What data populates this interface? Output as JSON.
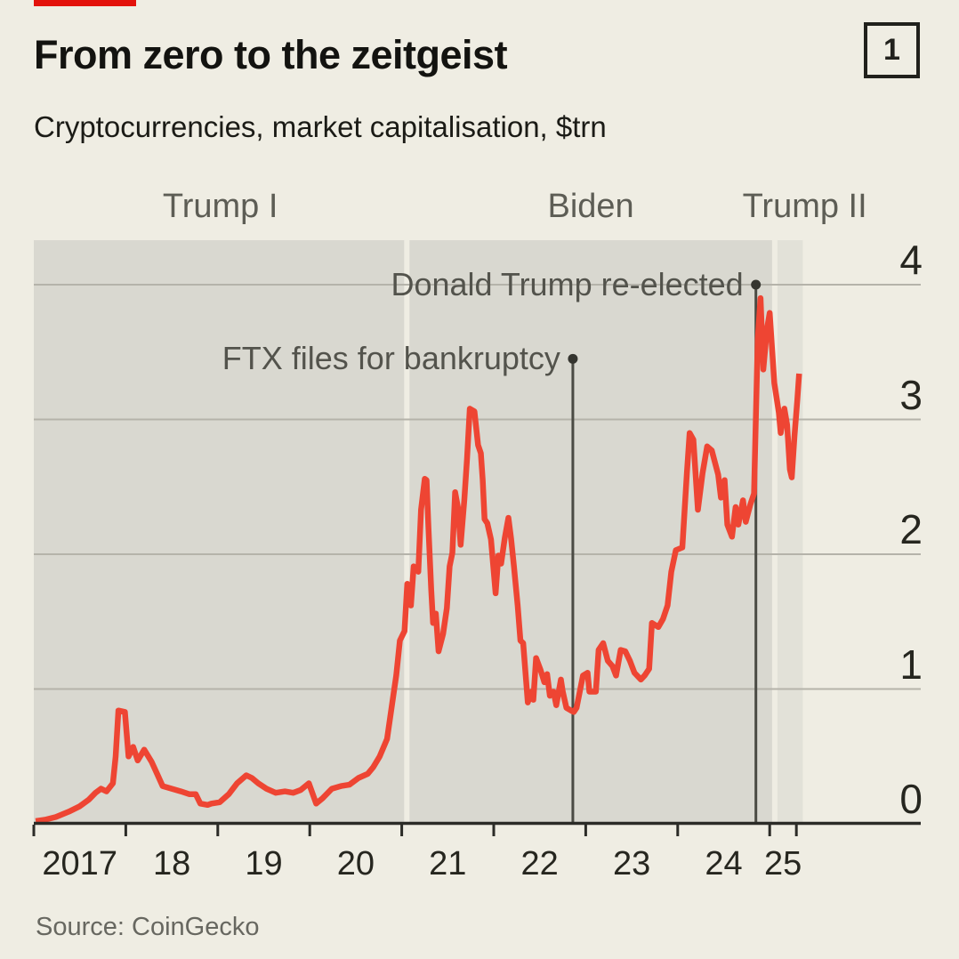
{
  "header": {
    "title": "From zero to the zeitgeist",
    "index_label": "1",
    "subtitle": "Cryptocurrencies, market capitalisation, $trn"
  },
  "source": "Source: CoinGecko",
  "colors": {
    "background": "#efede3",
    "band": "#d9d8d0",
    "band_light": "#e2e1d8",
    "gridline": "#b5b3aa",
    "axis": "#2b2b27",
    "line": "#ee4533",
    "annotation_line": "#4b4b44",
    "annotation_dot": "#35352f",
    "red_tab": "#e3120b"
  },
  "chart_data": {
    "type": "line",
    "title": "Cryptocurrencies, market capitalisation, $trn",
    "xlabel": "",
    "ylabel": "$trn",
    "x_range": [
      2017.0,
      2025.36
    ],
    "y_range": [
      0,
      4.33
    ],
    "grid": "horizontal",
    "legend": "none",
    "y_ticks": [
      4,
      3,
      2,
      1,
      0
    ],
    "x_ticks": [
      2017,
      2018,
      2019,
      2020,
      2021,
      2022,
      2023,
      2024,
      2025,
      2025.29
    ],
    "x_labels": [
      {
        "text": "2017",
        "center_year": 2017.5
      },
      {
        "text": "18",
        "center_year": 2018.5
      },
      {
        "text": "19",
        "center_year": 2019.5
      },
      {
        "text": "20",
        "center_year": 2020.5
      },
      {
        "text": "21",
        "center_year": 2021.5
      },
      {
        "text": "22",
        "center_year": 2022.5
      },
      {
        "text": "23",
        "center_year": 2023.5
      },
      {
        "text": "24",
        "center_year": 2024.5
      },
      {
        "text": "25",
        "center_year": 2025.145
      }
    ],
    "periods": [
      {
        "label": "Trump I",
        "start": 2017.0,
        "end": 2021.055,
        "shade": "band"
      },
      {
        "label": "Biden",
        "start": 2021.055,
        "end": 2025.055,
        "shade": "band"
      },
      {
        "label": "Trump II",
        "start": 2025.055,
        "end": 2025.36,
        "shade": "band_light"
      }
    ],
    "annotations": [
      {
        "text": "FTX files for bankruptcy",
        "year": 2022.86,
        "value": 3.45
      },
      {
        "text": "Donald Trump re-elected",
        "year": 2024.85,
        "value": 4.0
      }
    ],
    "series": [
      {
        "name": "Cryptocurrencies market capitalisation, $trn",
        "points": [
          [
            2017.02,
            0.02
          ],
          [
            2017.12,
            0.03
          ],
          [
            2017.24,
            0.05
          ],
          [
            2017.38,
            0.09
          ],
          [
            2017.5,
            0.13
          ],
          [
            2017.6,
            0.18
          ],
          [
            2017.67,
            0.23
          ],
          [
            2017.73,
            0.26
          ],
          [
            2017.79,
            0.24
          ],
          [
            2017.86,
            0.3
          ],
          [
            2017.89,
            0.5
          ],
          [
            2017.92,
            0.84
          ],
          [
            2017.99,
            0.83
          ],
          [
            2018.03,
            0.5
          ],
          [
            2018.08,
            0.57
          ],
          [
            2018.13,
            0.47
          ],
          [
            2018.2,
            0.55
          ],
          [
            2018.28,
            0.46
          ],
          [
            2018.34,
            0.37
          ],
          [
            2018.4,
            0.28
          ],
          [
            2018.5,
            0.26
          ],
          [
            2018.6,
            0.24
          ],
          [
            2018.69,
            0.22
          ],
          [
            2018.76,
            0.22
          ],
          [
            2018.81,
            0.15
          ],
          [
            2018.89,
            0.14
          ],
          [
            2018.93,
            0.15
          ],
          [
            2019.02,
            0.16
          ],
          [
            2019.12,
            0.22
          ],
          [
            2019.21,
            0.3
          ],
          [
            2019.31,
            0.36
          ],
          [
            2019.37,
            0.34
          ],
          [
            2019.44,
            0.3
          ],
          [
            2019.53,
            0.26
          ],
          [
            2019.63,
            0.23
          ],
          [
            2019.73,
            0.24
          ],
          [
            2019.82,
            0.23
          ],
          [
            2019.9,
            0.25
          ],
          [
            2019.99,
            0.3
          ],
          [
            2020.07,
            0.15
          ],
          [
            2020.14,
            0.19
          ],
          [
            2020.24,
            0.26
          ],
          [
            2020.34,
            0.28
          ],
          [
            2020.43,
            0.29
          ],
          [
            2020.53,
            0.34
          ],
          [
            2020.63,
            0.37
          ],
          [
            2020.69,
            0.42
          ],
          [
            2020.76,
            0.5
          ],
          [
            2020.84,
            0.63
          ],
          [
            2020.91,
            0.96
          ],
          [
            2020.94,
            1.1
          ],
          [
            2020.98,
            1.36
          ],
          [
            2021.03,
            1.43
          ],
          [
            2021.06,
            1.78
          ],
          [
            2021.1,
            1.62
          ],
          [
            2021.13,
            1.91
          ],
          [
            2021.18,
            1.87
          ],
          [
            2021.21,
            2.33
          ],
          [
            2021.25,
            2.56
          ],
          [
            2021.27,
            2.55
          ],
          [
            2021.29,
            2.2
          ],
          [
            2021.32,
            1.74
          ],
          [
            2021.34,
            1.49
          ],
          [
            2021.37,
            1.56
          ],
          [
            2021.4,
            1.28
          ],
          [
            2021.45,
            1.41
          ],
          [
            2021.49,
            1.6
          ],
          [
            2021.52,
            1.91
          ],
          [
            2021.55,
            2.01
          ],
          [
            2021.58,
            2.46
          ],
          [
            2021.61,
            2.35
          ],
          [
            2021.64,
            2.07
          ],
          [
            2021.68,
            2.4
          ],
          [
            2021.71,
            2.71
          ],
          [
            2021.74,
            3.08
          ],
          [
            2021.79,
            3.06
          ],
          [
            2021.83,
            2.81
          ],
          [
            2021.86,
            2.75
          ],
          [
            2021.88,
            2.55
          ],
          [
            2021.9,
            2.26
          ],
          [
            2021.93,
            2.23
          ],
          [
            2021.97,
            2.11
          ],
          [
            2022.02,
            1.71
          ],
          [
            2022.05,
            1.99
          ],
          [
            2022.08,
            1.93
          ],
          [
            2022.12,
            2.12
          ],
          [
            2022.16,
            2.27
          ],
          [
            2022.19,
            2.11
          ],
          [
            2022.22,
            1.91
          ],
          [
            2022.26,
            1.62
          ],
          [
            2022.29,
            1.36
          ],
          [
            2022.32,
            1.34
          ],
          [
            2022.37,
            0.9
          ],
          [
            2022.41,
            0.98
          ],
          [
            2022.43,
            0.92
          ],
          [
            2022.46,
            1.23
          ],
          [
            2022.51,
            1.14
          ],
          [
            2022.55,
            1.05
          ],
          [
            2022.58,
            1.11
          ],
          [
            2022.61,
            0.95
          ],
          [
            2022.65,
            0.98
          ],
          [
            2022.68,
            0.88
          ],
          [
            2022.73,
            1.07
          ],
          [
            2022.75,
            0.98
          ],
          [
            2022.79,
            0.86
          ],
          [
            2022.84,
            0.84
          ],
          [
            2022.87,
            0.83
          ],
          [
            2022.9,
            0.86
          ],
          [
            2022.97,
            1.1
          ],
          [
            2023.02,
            1.12
          ],
          [
            2023.04,
            0.98
          ],
          [
            2023.11,
            0.98
          ],
          [
            2023.14,
            1.29
          ],
          [
            2023.19,
            1.34
          ],
          [
            2023.24,
            1.21
          ],
          [
            2023.29,
            1.17
          ],
          [
            2023.33,
            1.1
          ],
          [
            2023.38,
            1.29
          ],
          [
            2023.43,
            1.28
          ],
          [
            2023.48,
            1.21
          ],
          [
            2023.53,
            1.12
          ],
          [
            2023.6,
            1.07
          ],
          [
            2023.64,
            1.1
          ],
          [
            2023.69,
            1.15
          ],
          [
            2023.72,
            1.49
          ],
          [
            2023.79,
            1.46
          ],
          [
            2023.84,
            1.52
          ],
          [
            2023.89,
            1.62
          ],
          [
            2023.93,
            1.87
          ],
          [
            2023.98,
            2.03
          ],
          [
            2024.05,
            2.05
          ],
          [
            2024.1,
            2.6
          ],
          [
            2024.13,
            2.9
          ],
          [
            2024.17,
            2.85
          ],
          [
            2024.22,
            2.33
          ],
          [
            2024.27,
            2.6
          ],
          [
            2024.32,
            2.8
          ],
          [
            2024.37,
            2.77
          ],
          [
            2024.44,
            2.59
          ],
          [
            2024.47,
            2.42
          ],
          [
            2024.51,
            2.55
          ],
          [
            2024.54,
            2.22
          ],
          [
            2024.59,
            2.13
          ],
          [
            2024.63,
            2.35
          ],
          [
            2024.66,
            2.22
          ],
          [
            2024.71,
            2.4
          ],
          [
            2024.74,
            2.24
          ],
          [
            2024.79,
            2.37
          ],
          [
            2024.83,
            2.45
          ],
          [
            2024.87,
            3.6
          ],
          [
            2024.9,
            3.9
          ],
          [
            2024.93,
            3.37
          ],
          [
            2024.97,
            3.67
          ],
          [
            2025.0,
            3.79
          ],
          [
            2025.05,
            3.27
          ],
          [
            2025.1,
            3.05
          ],
          [
            2025.12,
            2.9
          ],
          [
            2025.16,
            3.08
          ],
          [
            2025.19,
            2.96
          ],
          [
            2025.22,
            2.63
          ],
          [
            2025.24,
            2.57
          ],
          [
            2025.27,
            2.88
          ],
          [
            2025.3,
            3.14
          ],
          [
            2025.32,
            3.34
          ]
        ]
      }
    ]
  }
}
